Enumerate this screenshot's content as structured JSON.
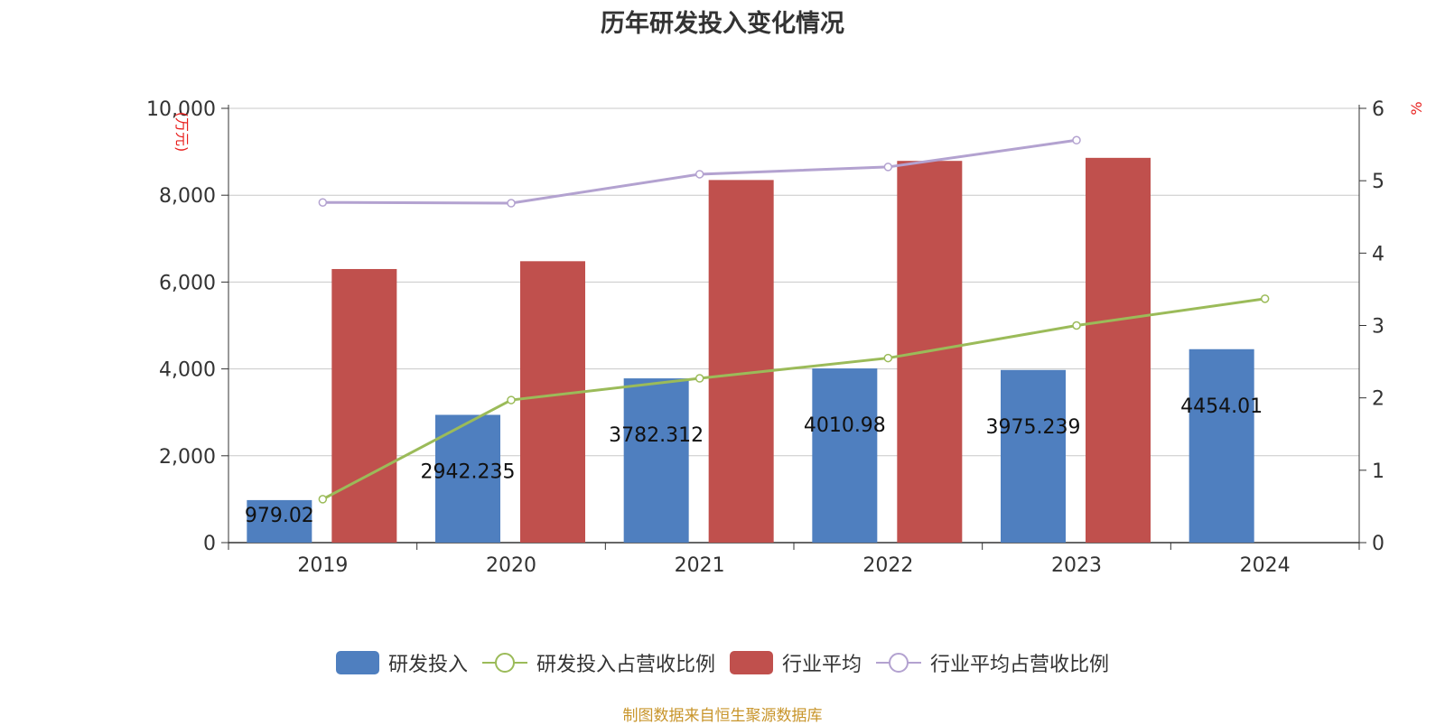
{
  "title": "历年研发投入变化情况",
  "source_note": "制图数据来自恒生聚源数据库",
  "colors": {
    "rd_bar": "#4f7fbf",
    "industry_bar": "#c0504d",
    "rd_ratio_line": "#9bbb59",
    "industry_ratio_line": "#b3a2d0",
    "axis_unit_text": "#e8201e",
    "grid": "#c8c8c8",
    "text": "#333333"
  },
  "chart_data": {
    "type": "bar",
    "title": "历年研发投入变化情况",
    "categories": [
      "2019",
      "2020",
      "2021",
      "2022",
      "2023",
      "2024"
    ],
    "y_left": {
      "label": "(万元)",
      "range": [
        0,
        10000
      ],
      "ticks": [
        "0",
        "2,000",
        "4,000",
        "6,000",
        "8,000",
        "10,000"
      ]
    },
    "y_right": {
      "label": "%",
      "range": [
        0,
        6
      ],
      "ticks": [
        "0",
        "1",
        "2",
        "3",
        "4",
        "5",
        "6"
      ]
    },
    "grid": true,
    "legend_position": "bottom-center",
    "series": [
      {
        "name": "研发投入",
        "type": "bar",
        "axis": "left",
        "values": [
          979.02,
          2942.235,
          3782.312,
          4010.98,
          3975.239,
          4454.01
        ],
        "labels": [
          "979.02",
          "2942.235",
          "3782.312",
          "4010.98",
          "3975.239",
          "4454.01"
        ]
      },
      {
        "name": "研发投入占营收比例",
        "type": "line",
        "axis": "right",
        "values": [
          0.6,
          1.97,
          2.27,
          2.55,
          3.0,
          3.37
        ]
      },
      {
        "name": "行业平均",
        "type": "bar",
        "axis": "left",
        "values": [
          6300,
          6480,
          8350,
          8790,
          8860,
          null
        ]
      },
      {
        "name": "行业平均占营收比例",
        "type": "line",
        "axis": "right",
        "values": [
          4.7,
          4.69,
          5.09,
          5.19,
          5.56,
          null
        ]
      }
    ]
  }
}
